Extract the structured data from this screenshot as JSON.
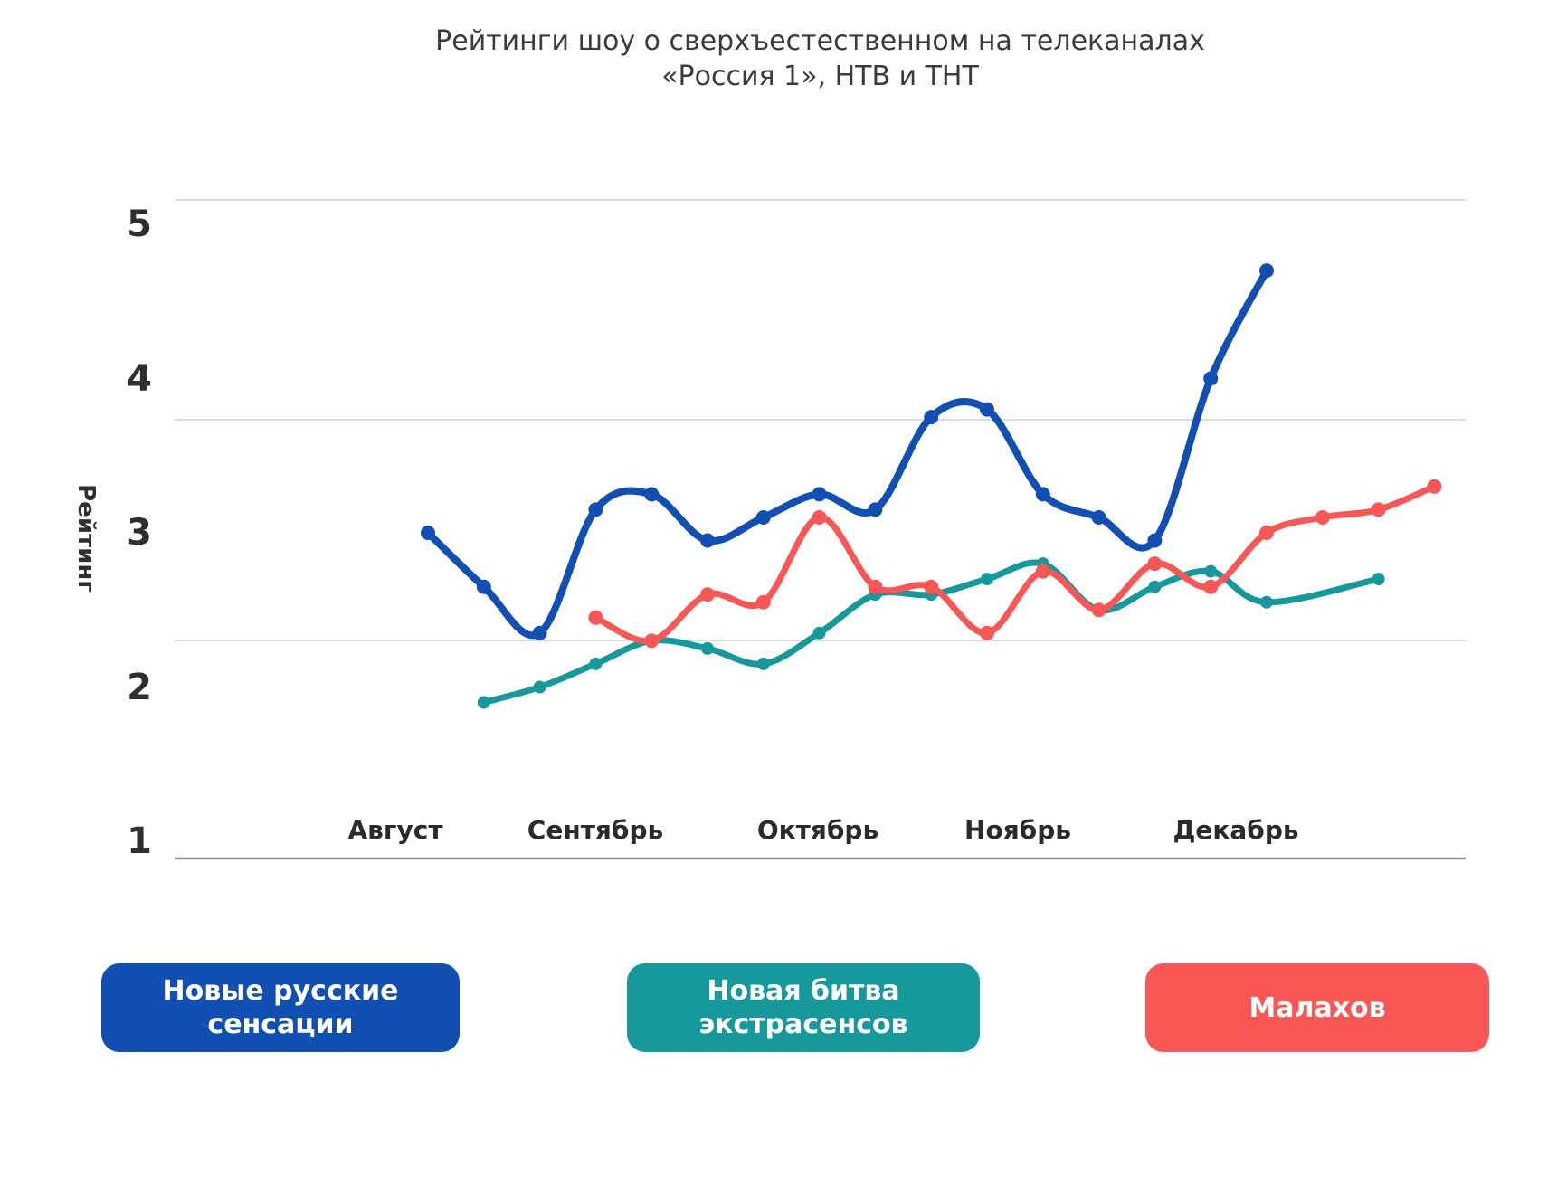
{
  "title": {
    "line1": "Рейтинги шоу о сверхъестественном на телеканалах",
    "line2": "«Россия 1»,  НТВ и ТНТ"
  },
  "chart_data": {
    "type": "line",
    "title": "Рейтинги шоу о сверхъестественном на телеканалах «Россия 1», НТВ и ТНТ",
    "ylabel": "Рейтинг",
    "ylim": [
      1,
      5
    ],
    "y_ticks": [
      5,
      4,
      3,
      2,
      1
    ],
    "x_months": [
      "Август",
      "Сентябрь",
      "Октябрь",
      "Ноябрь",
      "Декабрь"
    ],
    "x_unit": "week",
    "grid": "3 light horizontal gridlines plus dark bottom axis, no vertical grid",
    "legend_position": "bottom",
    "series": [
      {
        "name": "Новые русские сенсации",
        "color": "#1150B2",
        "weeks": [
          0,
          1,
          2,
          3,
          4,
          5,
          6,
          7,
          8,
          9,
          10,
          11,
          12,
          13,
          14,
          15
        ],
        "values": [
          3.0,
          2.65,
          2.35,
          3.15,
          3.25,
          2.95,
          3.1,
          3.25,
          3.15,
          3.75,
          3.8,
          3.25,
          3.1,
          2.95,
          4.0,
          4.7
        ]
      },
      {
        "name": "Новая битва экстрасенсов",
        "color": "#17999B",
        "weeks": [
          1,
          2,
          3,
          4,
          5,
          6,
          7,
          8,
          9,
          10,
          11,
          12,
          13,
          14,
          15,
          17
        ],
        "values": [
          1.9,
          2.0,
          2.15,
          2.3,
          2.25,
          2.15,
          2.35,
          2.6,
          2.6,
          2.7,
          2.8,
          2.5,
          2.65,
          2.75,
          2.55,
          2.7
        ]
      },
      {
        "name": "Малахов",
        "color": "#F95656",
        "weeks": [
          3,
          4,
          5,
          6,
          7,
          8,
          9,
          10,
          11,
          12,
          13,
          14,
          15,
          16,
          17,
          18
        ],
        "values": [
          2.45,
          2.3,
          2.6,
          2.55,
          3.1,
          2.65,
          2.65,
          2.35,
          2.75,
          2.5,
          2.8,
          2.65,
          3.0,
          3.1,
          3.15,
          3.3
        ]
      }
    ]
  }
}
